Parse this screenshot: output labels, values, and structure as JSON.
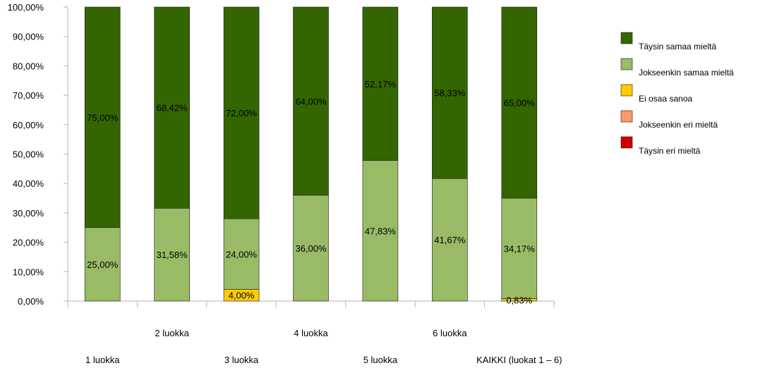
{
  "chart_data": {
    "type": "bar",
    "stacked": true,
    "percent_axis": true,
    "categories": [
      "1 luokka",
      "2 luokka",
      "3 luokka",
      "4 luokka",
      "5 luokka",
      "6 luokka",
      "KAIKKI (luokat 1 – 6)"
    ],
    "ylim": [
      0,
      100
    ],
    "ytick_labels": [
      "0,00%",
      "10,00%",
      "20,00%",
      "30,00%",
      "40,00%",
      "50,00%",
      "60,00%",
      "70,00%",
      "80,00%",
      "90,00%",
      "100,00%"
    ],
    "ytick_values": [
      0,
      10,
      20,
      30,
      40,
      50,
      60,
      70,
      80,
      90,
      100
    ],
    "grid": false,
    "legend_position": "right",
    "series": [
      {
        "name": "Täysin eri mieltä",
        "color": "#cc0000",
        "values": [
          0,
          0,
          0,
          0,
          0,
          0,
          0
        ],
        "labels": [
          "",
          "",
          "",
          "",
          "",
          "",
          ""
        ]
      },
      {
        "name": "Jokseenkin eri mieltä",
        "color": "#ff9966",
        "values": [
          0,
          0,
          0,
          0,
          0,
          0,
          0
        ],
        "labels": [
          "",
          "",
          "",
          "",
          "",
          "",
          ""
        ]
      },
      {
        "name": "Ei osaa sanoa",
        "color": "#ffcc00",
        "values": [
          0,
          0,
          4.0,
          0,
          0,
          0,
          0.83
        ],
        "labels": [
          "",
          "",
          "4,00%",
          "",
          "",
          "",
          "0,83%"
        ]
      },
      {
        "name": "Jokseenkin samaa mieltä",
        "color": "#99bb66",
        "values": [
          25.0,
          31.58,
          24.0,
          36.0,
          47.83,
          41.67,
          34.17
        ],
        "labels": [
          "25,00%",
          "31,58%",
          "24,00%",
          "36,00%",
          "47,83%",
          "41,67%",
          "34,17%"
        ]
      },
      {
        "name": "Täysin samaa mieltä",
        "color": "#336600",
        "values": [
          75.0,
          68.42,
          72.0,
          64.0,
          52.17,
          58.33,
          65.0
        ],
        "labels": [
          "75,00%",
          "68,42%",
          "72,00%",
          "64,00%",
          "52,17%",
          "58,33%",
          "65,00%"
        ]
      }
    ],
    "legend_order": [
      "Täysin samaa mieltä",
      "Jokseenkin samaa mieltä",
      "Ei osaa sanoa",
      "Jokseenkin eri mieltä",
      "Täysin eri mieltä"
    ]
  }
}
